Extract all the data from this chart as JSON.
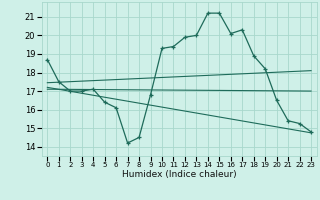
{
  "xlabel": "Humidex (Indice chaleur)",
  "bg_color": "#cff0e8",
  "grid_color": "#a8d8cc",
  "line_color": "#1e6b5a",
  "xlim": [
    -0.5,
    23.5
  ],
  "ylim": [
    13.5,
    21.8
  ],
  "yticks": [
    14,
    15,
    16,
    17,
    18,
    19,
    20,
    21
  ],
  "xticks": [
    0,
    1,
    2,
    3,
    4,
    5,
    6,
    7,
    8,
    9,
    10,
    11,
    12,
    13,
    14,
    15,
    16,
    17,
    18,
    19,
    20,
    21,
    22,
    23
  ],
  "curve1_x": [
    0,
    1,
    2,
    3,
    4,
    5,
    6,
    7,
    8,
    9,
    10,
    11,
    12,
    13,
    14,
    15,
    16,
    17,
    18,
    19,
    20,
    21,
    22,
    23
  ],
  "curve1_y": [
    18.7,
    17.5,
    17.0,
    17.0,
    17.1,
    16.4,
    16.1,
    14.2,
    14.5,
    16.8,
    19.3,
    19.4,
    19.9,
    20.0,
    21.2,
    21.2,
    20.1,
    20.3,
    18.9,
    18.2,
    16.5,
    15.4,
    15.25,
    14.8
  ],
  "line2_x": [
    0,
    23
  ],
  "line2_y": [
    17.45,
    18.1
  ],
  "line3_x": [
    0,
    23
  ],
  "line3_y": [
    17.1,
    17.0
  ],
  "line4_x": [
    0,
    23
  ],
  "line4_y": [
    17.2,
    14.75
  ]
}
